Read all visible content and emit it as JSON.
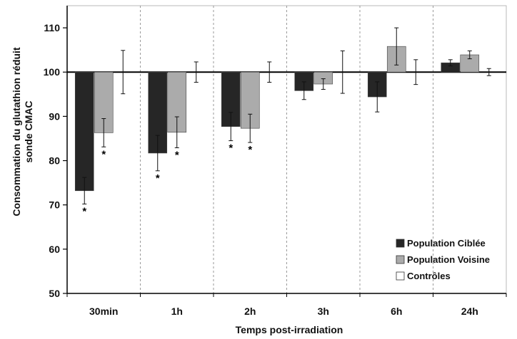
{
  "chart_data": {
    "type": "bar",
    "xlabel": "Temps post-irradiation",
    "ylabel_lines": [
      "Consommation du glutathion réduit",
      "sonde CMAC"
    ],
    "ylim": [
      50,
      115
    ],
    "baseline": 100,
    "yticks": [
      50,
      60,
      70,
      80,
      90,
      100,
      110
    ],
    "categories": [
      "30min",
      "1h",
      "2h",
      "3h",
      "6h",
      "24h"
    ],
    "series": [
      {
        "name": "Population Ciblée",
        "color": "#262626",
        "values": [
          73.2,
          81.7,
          87.7,
          95.8,
          94.4,
          102.1
        ],
        "errors": [
          3.0,
          4.0,
          3.2,
          2.0,
          3.4,
          0.7
        ],
        "significance": [
          "*",
          "*",
          "*",
          "",
          "",
          ""
        ]
      },
      {
        "name": "Population Voisine",
        "color": "#ababab",
        "values": [
          86.3,
          86.4,
          87.3,
          97.3,
          105.8,
          103.9
        ],
        "errors": [
          3.2,
          3.5,
          3.2,
          1.2,
          4.2,
          0.9
        ],
        "significance": [
          "*",
          "*",
          "*",
          "",
          "",
          ""
        ]
      },
      {
        "name": "Contrôles",
        "color": "#ffffff",
        "values": [
          100,
          100,
          100,
          100,
          100,
          100
        ],
        "errors": [
          4.9,
          2.3,
          2.3,
          4.8,
          2.8,
          0.8
        ],
        "significance": [
          "",
          "",
          "",
          "",
          "",
          ""
        ]
      }
    ],
    "legend_position": "bottom-right",
    "grid": false,
    "category_separators": "dashed"
  }
}
